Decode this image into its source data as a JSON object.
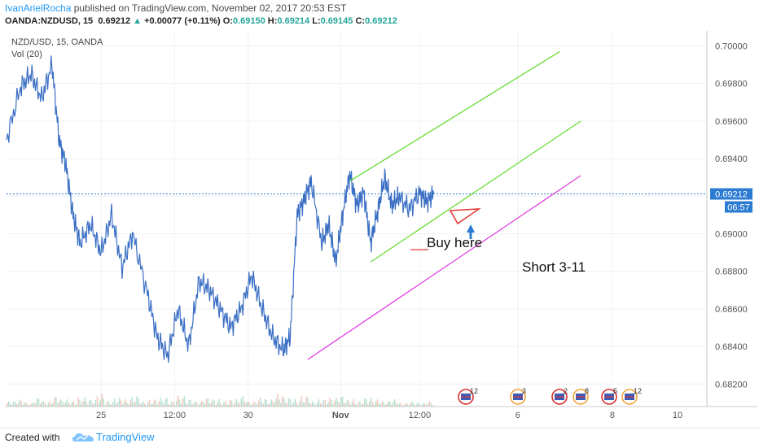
{
  "header": {
    "author": "IvanArielRocha",
    "published": " published on TradingView.com, November 02, 2017 20:53 EST",
    "symbol": "OANDA:NZDUSD, 15",
    "last": "0.69212",
    "change": "+0.00077 (+0.11%)",
    "o_label": "O:",
    "o_value": "0.69150",
    "h_label": "H:",
    "h_value": "0.69214",
    "l_label": "L:",
    "l_value": "0.69145",
    "c_label": "C:",
    "c_value": "0.69212"
  },
  "legend": {
    "title": "NZD/USD, 15, OANDA",
    "vol": "Vol (20)"
  },
  "price_labels": {
    "current": "0.69212",
    "timer": "06:57"
  },
  "annotations": {
    "buy": "Buy here",
    "short": "Short 3-11"
  },
  "calendar_icons": [
    "12",
    "3",
    "2",
    "8",
    "5",
    "12"
  ],
  "footer": {
    "created": "Created with",
    "brand": "TradingView"
  },
  "colors": {
    "price_line": "#3a6fc4",
    "channel": "#66dd33",
    "short_line": "#e040e0",
    "current_tag": "#2b7bd2",
    "arrow": "#2b7bd2",
    "triangle": "#e53935"
  },
  "chart_data": {
    "type": "line",
    "title": "NZD/USD, 15, OANDA",
    "ylim": [
      0.6808,
      0.7008
    ],
    "y_ticks": [
      "0.70000",
      "0.69800",
      "0.69600",
      "0.69400",
      "0.69200",
      "0.69000",
      "0.68800",
      "0.68600",
      "0.68400",
      "0.68200"
    ],
    "x_ticks": [
      "25",
      "12:00",
      "30",
      "Nov",
      "12:00",
      "6",
      "8",
      "10"
    ],
    "series": [
      {
        "name": "NZD/USD",
        "x": [
          0,
          0.02,
          0.035,
          0.05,
          0.065,
          0.075,
          0.085,
          0.095,
          0.105,
          0.12,
          0.135,
          0.15,
          0.165,
          0.18,
          0.2,
          0.215,
          0.23,
          0.245,
          0.26,
          0.275,
          0.29,
          0.305,
          0.32,
          0.335,
          0.35,
          0.365,
          0.38,
          0.395,
          0.405,
          0.415,
          0.425,
          0.435,
          0.45,
          0.46,
          0.47,
          0.48,
          0.49,
          0.5,
          0.51,
          0.52,
          0.53,
          0.54,
          0.55,
          0.56,
          0.575,
          0.59,
          0.6,
          0.61
        ],
        "values": [
          0.695,
          0.6978,
          0.6985,
          0.6972,
          0.699,
          0.695,
          0.6936,
          0.691,
          0.6895,
          0.6905,
          0.689,
          0.691,
          0.6882,
          0.69,
          0.687,
          0.6845,
          0.6835,
          0.686,
          0.684,
          0.6875,
          0.687,
          0.686,
          0.685,
          0.686,
          0.6878,
          0.686,
          0.6845,
          0.6838,
          0.6845,
          0.691,
          0.6918,
          0.6928,
          0.6895,
          0.6905,
          0.6885,
          0.691,
          0.6932,
          0.6915,
          0.6922,
          0.6895,
          0.6912,
          0.693,
          0.6915,
          0.692,
          0.6913,
          0.6922,
          0.6917,
          0.69212
        ]
      },
      {
        "name": "Volume",
        "values": [
          3,
          4,
          2,
          5,
          3,
          6,
          4,
          3,
          5,
          4,
          7,
          3,
          5,
          4,
          6,
          3,
          4,
          5,
          3,
          6,
          4,
          3,
          5,
          4,
          3,
          4,
          6,
          3,
          5,
          4,
          7,
          5,
          4,
          6,
          3,
          4,
          5,
          6,
          4,
          3,
          5,
          4,
          3,
          4,
          2,
          3,
          2,
          3
        ]
      }
    ],
    "channel_lines": [
      {
        "name": "upper",
        "x": [
          0.49,
          0.79
        ],
        "y": [
          0.6928,
          0.6997
        ]
      },
      {
        "name": "lower",
        "x": [
          0.52,
          0.82
        ],
        "y": [
          0.6885,
          0.696
        ]
      },
      {
        "name": "short",
        "x": [
          0.43,
          0.82
        ],
        "y": [
          0.6833,
          0.6931
        ]
      }
    ],
    "grid": true
  }
}
